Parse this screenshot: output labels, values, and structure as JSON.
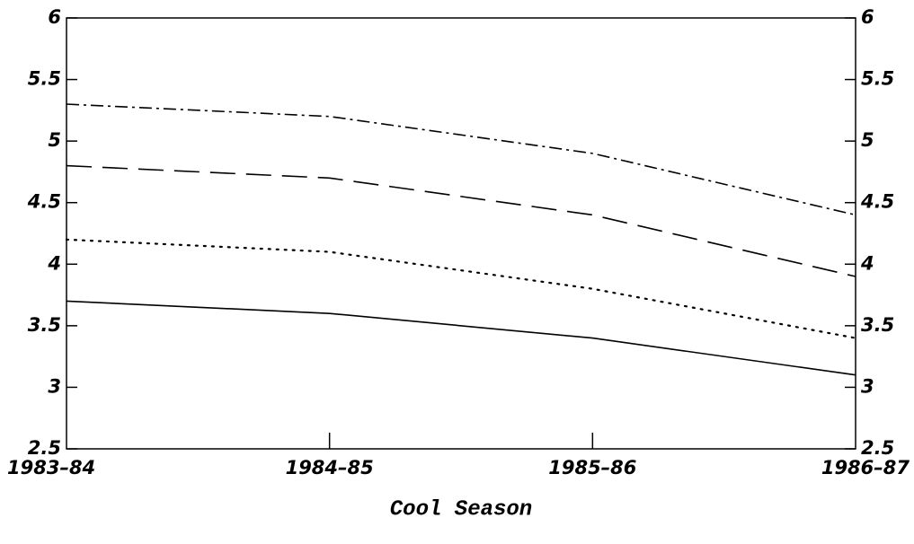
{
  "chart_data": {
    "type": "line",
    "x_label": "Cool Season",
    "categories": [
      "1983–84",
      "1984–85",
      "1985–86",
      "1986–87"
    ],
    "series": [
      {
        "color": "#000000",
        "style": "dashdot",
        "values": [
          5.3,
          5.2,
          4.9,
          4.4
        ]
      },
      {
        "color": "#000000",
        "style": "dashed",
        "values": [
          4.8,
          4.7,
          4.4,
          3.9
        ]
      },
      {
        "color": "#000000",
        "style": "dotted",
        "values": [
          4.2,
          4.1,
          3.8,
          3.4
        ]
      },
      {
        "color": "#000000",
        "style": "solid",
        "values": [
          3.7,
          3.6,
          3.4,
          3.1
        ]
      }
    ],
    "ylim": [
      2.5,
      6
    ],
    "yticks": [
      2.5,
      3,
      3.5,
      4,
      4.5,
      5,
      5.5,
      6
    ],
    "y2lim": [
      2.5,
      6
    ],
    "y2ticks": [
      2.5,
      3,
      3.5,
      4,
      4.5,
      5,
      5.5,
      6
    ],
    "grid": false
  }
}
